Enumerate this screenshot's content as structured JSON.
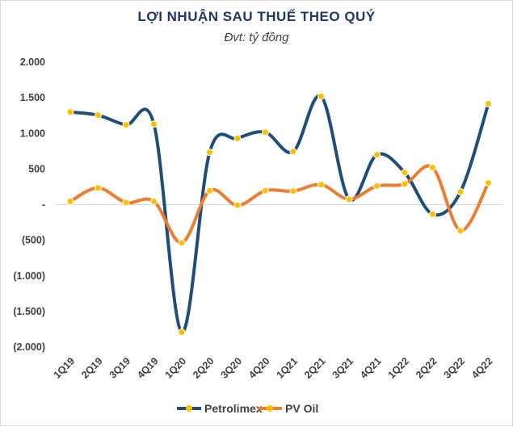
{
  "chart_data": {
    "type": "line",
    "title": "LỢI NHUẬN SAU THUẾ THEO QUÝ",
    "subtitle": "Đvt: tỷ đồng",
    "xlabel": "",
    "ylabel": "",
    "ylim": [
      -2000,
      2000
    ],
    "yticks": [
      2000,
      1500,
      1000,
      500,
      0,
      -500,
      -1000,
      -1500,
      -2000
    ],
    "ytick_labels": [
      "2.000",
      "1.500",
      "1.000",
      "500",
      "-",
      "(500)",
      "(1.000)",
      "(1.500)",
      "(2.000)"
    ],
    "grid": "zero-line only",
    "legend_position": "bottom",
    "categories": [
      "1Q19",
      "2Q19",
      "3Q19",
      "4Q19",
      "1Q20",
      "2Q20",
      "3Q20",
      "4Q20",
      "1Q21",
      "2Q21",
      "3Q21",
      "4Q21",
      "1Q22",
      "2Q22",
      "3Q22",
      "4Q22"
    ],
    "series": [
      {
        "name": "Petrolimex",
        "color": "#1f4e79",
        "marker_color": "#ffc000",
        "values": [
          1300,
          1255,
          1120,
          1130,
          -1790,
          735,
          930,
          1015,
          745,
          1520,
          80,
          700,
          450,
          -135,
          180,
          1415
        ]
      },
      {
        "name": "PV Oil",
        "color": "#ed7d31",
        "marker_color": "#ffc000",
        "values": [
          45,
          235,
          30,
          45,
          -535,
          195,
          -10,
          195,
          190,
          280,
          75,
          260,
          290,
          520,
          -365,
          305
        ]
      }
    ]
  }
}
